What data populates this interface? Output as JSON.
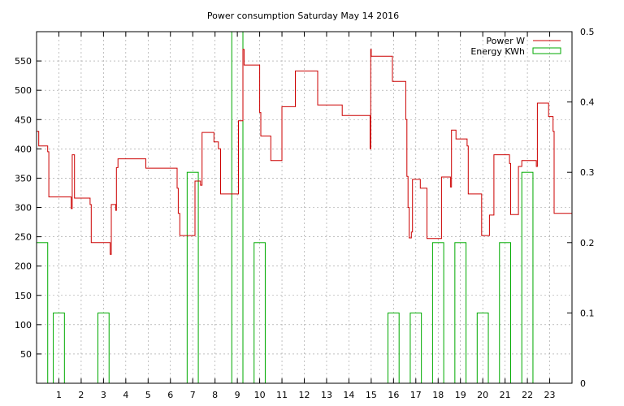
{
  "chart_data": {
    "type": "line",
    "title": "Power consumption Saturday May 14 2016",
    "xlabel": "",
    "ylabel": "",
    "y2label": "",
    "xlim": [
      0,
      24
    ],
    "ylim": [
      0,
      600
    ],
    "y2lim": [
      0,
      0.5
    ],
    "x_ticks": [
      1,
      2,
      3,
      4,
      5,
      6,
      7,
      8,
      9,
      10,
      11,
      12,
      13,
      14,
      15,
      16,
      17,
      18,
      19,
      20,
      21,
      22,
      23
    ],
    "y_ticks": [
      50,
      100,
      150,
      200,
      250,
      300,
      350,
      400,
      450,
      500,
      550
    ],
    "y2_ticks": [
      0,
      0.1,
      0.2,
      0.3,
      0.4,
      0.5
    ],
    "grid": true,
    "legend_position": "top-right",
    "series": [
      {
        "name": "Power W",
        "axis": "y",
        "color": "#cc0000",
        "style": "steps",
        "points": [
          [
            0,
            430
          ],
          [
            0.1,
            430
          ],
          [
            0.1,
            405
          ],
          [
            0.5,
            405
          ],
          [
            0.5,
            395
          ],
          [
            0.55,
            395
          ],
          [
            0.55,
            318
          ],
          [
            1.55,
            318
          ],
          [
            1.55,
            298
          ],
          [
            1.6,
            298
          ],
          [
            1.6,
            390
          ],
          [
            1.7,
            390
          ],
          [
            1.7,
            316
          ],
          [
            2.4,
            316
          ],
          [
            2.4,
            305
          ],
          [
            2.45,
            305
          ],
          [
            2.45,
            240
          ],
          [
            3.3,
            240
          ],
          [
            3.3,
            220
          ],
          [
            3.35,
            220
          ],
          [
            3.35,
            305
          ],
          [
            3.55,
            305
          ],
          [
            3.55,
            295
          ],
          [
            3.58,
            295
          ],
          [
            3.58,
            368
          ],
          [
            3.65,
            368
          ],
          [
            3.65,
            383
          ],
          [
            4.9,
            383
          ],
          [
            4.9,
            367
          ],
          [
            6.3,
            367
          ],
          [
            6.3,
            333
          ],
          [
            6.35,
            333
          ],
          [
            6.35,
            290
          ],
          [
            6.42,
            290
          ],
          [
            6.42,
            252
          ],
          [
            7.1,
            252
          ],
          [
            7.1,
            345
          ],
          [
            7.35,
            345
          ],
          [
            7.35,
            338
          ],
          [
            7.42,
            338
          ],
          [
            7.42,
            428
          ],
          [
            7.95,
            428
          ],
          [
            7.95,
            412
          ],
          [
            8.15,
            412
          ],
          [
            8.15,
            400
          ],
          [
            8.25,
            400
          ],
          [
            8.25,
            323
          ],
          [
            9.05,
            323
          ],
          [
            9.05,
            448
          ],
          [
            9.25,
            448
          ],
          [
            9.25,
            570
          ],
          [
            9.3,
            570
          ],
          [
            9.3,
            543
          ],
          [
            10.0,
            543
          ],
          [
            10.0,
            462
          ],
          [
            10.05,
            462
          ],
          [
            10.05,
            422
          ],
          [
            10.5,
            422
          ],
          [
            10.5,
            380
          ],
          [
            11.0,
            380
          ],
          [
            11.0,
            472
          ],
          [
            11.6,
            472
          ],
          [
            11.6,
            533
          ],
          [
            12.6,
            533
          ],
          [
            12.6,
            475
          ],
          [
            13.7,
            475
          ],
          [
            13.7,
            457
          ],
          [
            14.95,
            457
          ],
          [
            14.95,
            400
          ],
          [
            14.98,
            400
          ],
          [
            14.98,
            570
          ],
          [
            15.0,
            570
          ],
          [
            15.0,
            558
          ],
          [
            15.95,
            558
          ],
          [
            15.95,
            515
          ],
          [
            16.55,
            515
          ],
          [
            16.55,
            450
          ],
          [
            16.6,
            450
          ],
          [
            16.6,
            353
          ],
          [
            16.65,
            353
          ],
          [
            16.65,
            300
          ],
          [
            16.7,
            300
          ],
          [
            16.7,
            248
          ],
          [
            16.8,
            248
          ],
          [
            16.8,
            258
          ],
          [
            16.85,
            258
          ],
          [
            16.85,
            348
          ],
          [
            17.2,
            348
          ],
          [
            17.2,
            333
          ],
          [
            17.5,
            333
          ],
          [
            17.5,
            247
          ],
          [
            18.15,
            247
          ],
          [
            18.15,
            352
          ],
          [
            18.55,
            352
          ],
          [
            18.55,
            335
          ],
          [
            18.6,
            335
          ],
          [
            18.6,
            432
          ],
          [
            18.8,
            432
          ],
          [
            18.8,
            417
          ],
          [
            19.3,
            417
          ],
          [
            19.3,
            405
          ],
          [
            19.35,
            405
          ],
          [
            19.35,
            323
          ],
          [
            19.95,
            323
          ],
          [
            19.95,
            252
          ],
          [
            20.3,
            252
          ],
          [
            20.3,
            287
          ],
          [
            20.5,
            287
          ],
          [
            20.5,
            390
          ],
          [
            21.2,
            390
          ],
          [
            21.2,
            375
          ],
          [
            21.25,
            375
          ],
          [
            21.25,
            288
          ],
          [
            21.6,
            288
          ],
          [
            21.6,
            370
          ],
          [
            21.75,
            370
          ],
          [
            21.75,
            380
          ],
          [
            22.4,
            380
          ],
          [
            22.4,
            370
          ],
          [
            22.45,
            370
          ],
          [
            22.45,
            478
          ],
          [
            22.95,
            478
          ],
          [
            22.95,
            455
          ],
          [
            23.15,
            455
          ],
          [
            23.15,
            430
          ],
          [
            23.2,
            430
          ],
          [
            23.2,
            290
          ],
          [
            24,
            290
          ]
        ]
      },
      {
        "name": "Energy KWh",
        "axis": "y2",
        "color": "#00aa00",
        "style": "bars",
        "bars": [
          [
            0,
            0.2
          ],
          [
            0.5,
            0
          ],
          [
            0.75,
            0.1
          ],
          [
            1.25,
            0
          ],
          [
            2.75,
            0.1
          ],
          [
            3.25,
            0
          ],
          [
            6.75,
            0.3
          ],
          [
            7.25,
            0
          ],
          [
            8.75,
            0.5
          ],
          [
            9.25,
            0
          ],
          [
            9.75,
            0.2
          ],
          [
            10.25,
            0
          ],
          [
            15.75,
            0.1
          ],
          [
            16.25,
            0
          ],
          [
            16.75,
            0.1
          ],
          [
            17.25,
            0
          ],
          [
            17.75,
            0.2
          ],
          [
            18.25,
            0
          ],
          [
            18.75,
            0.2
          ],
          [
            19.25,
            0
          ],
          [
            19.75,
            0.1
          ],
          [
            20.25,
            0
          ],
          [
            20.75,
            0.2
          ],
          [
            21.25,
            0
          ],
          [
            21.75,
            0.3
          ],
          [
            22.25,
            0
          ]
        ]
      }
    ]
  }
}
